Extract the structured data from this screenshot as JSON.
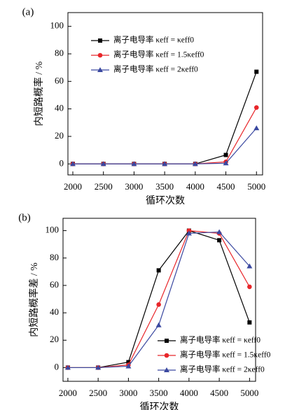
{
  "chart_data": [
    {
      "type": "line",
      "panel_label": "(a)",
      "y_label": "内短路概率 / %",
      "x_label": "循环次数",
      "x": [
        2000,
        2500,
        3000,
        3500,
        4000,
        4500,
        5000
      ],
      "xlim": [
        1920,
        5100
      ],
      "xticks": [
        2000,
        2500,
        3000,
        3500,
        4000,
        4500,
        5000
      ],
      "ylim": [
        -8,
        110
      ],
      "yticks": [
        0,
        20,
        40,
        60,
        80,
        100
      ],
      "legend": "upper left",
      "series": [
        {
          "name": "离子电导率 κeff = κeff0",
          "color": "#000000",
          "marker": "square",
          "values": [
            0,
            0,
            0,
            0,
            0,
            6.5,
            67
          ]
        },
        {
          "name": "离子电导率 κeff = 1.5κeff0",
          "color": "#e8262a",
          "marker": "circle",
          "values": [
            0,
            0,
            0,
            0,
            0,
            1.5,
            41
          ]
        },
        {
          "name": "离子电导率 κeff = 2κeff0",
          "color": "#3a48a0",
          "marker": "triangle",
          "values": [
            0,
            0,
            0,
            0,
            0,
            0.5,
            26
          ]
        }
      ]
    },
    {
      "type": "line",
      "panel_label": "(b)",
      "y_label": "内短路概率差 / %",
      "x_label": "循环次数",
      "x": [
        2000,
        2500,
        3000,
        3500,
        4000,
        4500,
        5000
      ],
      "xlim": [
        1920,
        5100
      ],
      "xticks": [
        2000,
        2500,
        3000,
        3500,
        4000,
        4500,
        5000
      ],
      "ylim": [
        -10,
        109
      ],
      "yticks": [
        0,
        20,
        40,
        60,
        80,
        100
      ],
      "legend": "lower right",
      "series": [
        {
          "name": "离子电导率 κeff = κeff0",
          "color": "#000000",
          "marker": "square",
          "values": [
            0,
            0,
            4,
            71,
            100,
            93,
            33
          ]
        },
        {
          "name": "离子电导率 κeff = 1.5κeff0",
          "color": "#e8262a",
          "marker": "circle",
          "values": [
            0,
            0,
            2,
            46,
            100,
            98,
            59
          ]
        },
        {
          "name": "离子电导率 κeff = 2κeff0",
          "color": "#3a48a0",
          "marker": "triangle",
          "values": [
            0,
            0,
            1,
            31,
            98,
            99,
            74
          ]
        }
      ]
    }
  ]
}
